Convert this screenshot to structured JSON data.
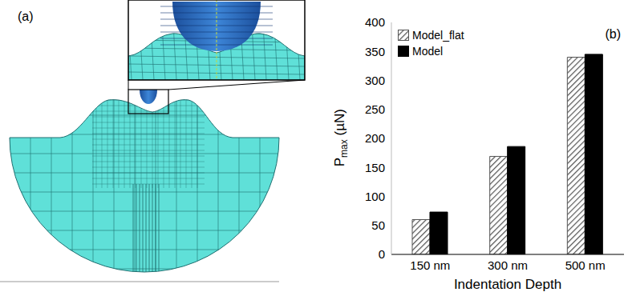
{
  "chart_data": [
    {
      "type": "diagram",
      "title": "(a)"
    },
    {
      "type": "bar",
      "title": "(b)",
      "categories": [
        "150 nm",
        "300 nm",
        "500 nm"
      ],
      "series": [
        {
          "name": "Model_flat",
          "color": "#555555",
          "marker": "hatched",
          "values": [
            60,
            169,
            340
          ]
        },
        {
          "name": "Model",
          "color": "#000000",
          "marker": "solid",
          "values": [
            73,
            186,
            345
          ]
        }
      ],
      "x_label": "Indentation Depth",
      "y_label": "Pmax (µN)",
      "ylim": [
        0,
        400
      ],
      "yticks": [
        0,
        50,
        100,
        150,
        200,
        250,
        300,
        350,
        400
      ],
      "legend": "upper left",
      "grid": false
    }
  ]
}
